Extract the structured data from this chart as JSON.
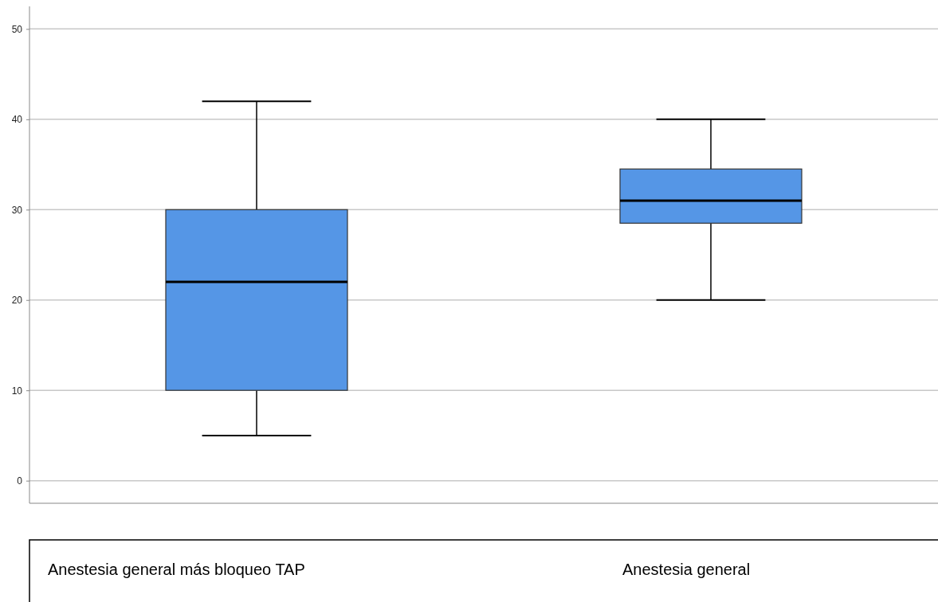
{
  "chart_data": {
    "type": "box",
    "categories": [
      "Anestesia general más bloqueo TAP",
      "Anestesia general"
    ],
    "boxes": [
      {
        "low": 5,
        "q1": 10,
        "median": 22,
        "q3": 30,
        "high": 42
      },
      {
        "low": 20,
        "q1": 28.5,
        "median": 31,
        "q3": 34.5,
        "high": 40
      }
    ],
    "color": "#5596e6",
    "ylim": [
      -2.5,
      52.5
    ],
    "yticks": [
      0,
      10,
      20,
      30,
      40,
      50
    ],
    "grid": "y"
  }
}
